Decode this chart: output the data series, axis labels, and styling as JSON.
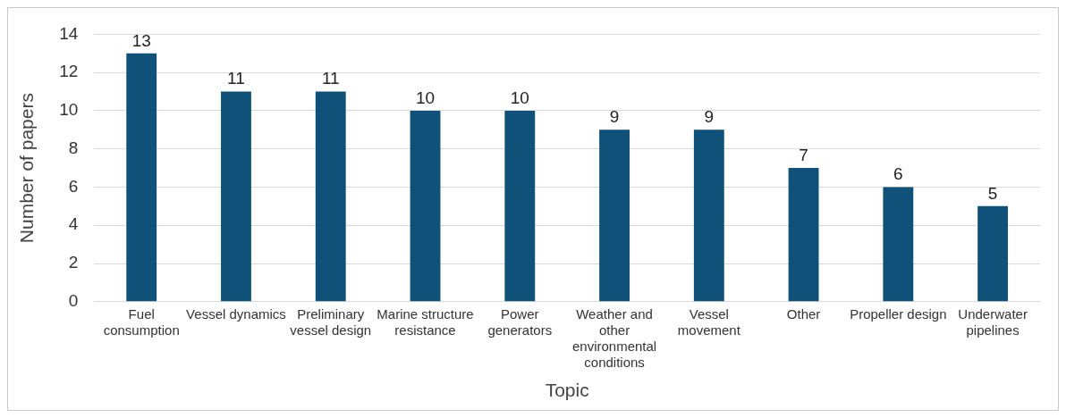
{
  "chart_data": {
    "type": "bar",
    "xlabel": "Topic",
    "ylabel": "Number of papers",
    "categories": [
      "Fuel consumption",
      "Vessel dynamics",
      "Preliminary vessel design",
      "Marine structure resistance",
      "Power generators",
      "Weather and other environmental conditions",
      "Vessel movement",
      "Other",
      "Propeller design",
      "Underwater pipelines"
    ],
    "values": [
      13,
      11,
      11,
      10,
      10,
      9,
      9,
      7,
      6,
      5
    ],
    "color": "#0f5179",
    "ylim": [
      0,
      14
    ],
    "yticks": [
      0,
      2,
      4,
      6,
      8,
      10,
      12,
      14
    ],
    "grid": "y",
    "data_labels": true
  }
}
